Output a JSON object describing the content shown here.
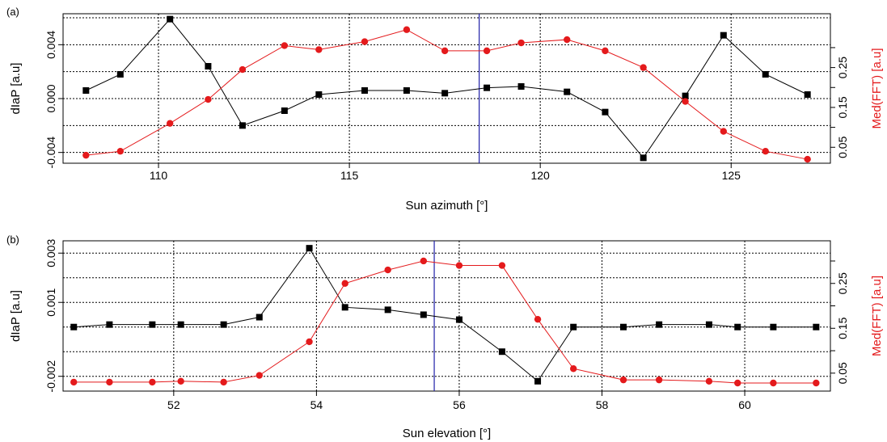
{
  "chart_data": [
    {
      "panel_label": "(a)",
      "type": "line",
      "xlabel": "Sun azimuth [°]",
      "ylabel_left": "dIaP [a.u]",
      "ylabel_right": "Med(FFT) [a.u]",
      "xlim": [
        107.5,
        127.6
      ],
      "ylim_left": [
        -0.0048,
        0.0063
      ],
      "ylim_right": [
        0.01,
        0.385
      ],
      "x_ticks": [
        110,
        115,
        120,
        125
      ],
      "y_ticks_left": [
        -0.004,
        0.0,
        0.004
      ],
      "y_ticks_left_labels": [
        "-0.004",
        "0.000",
        "0.004"
      ],
      "y_grid_left": [
        -0.004,
        -0.002,
        0.0,
        0.002,
        0.004,
        0.006
      ],
      "y_ticks_right": [
        0.05,
        0.15,
        0.25
      ],
      "y_ticks_right_labels": [
        "0.05",
        "0.15",
        "0.25"
      ],
      "y_ticks_right_minor": [
        0.1,
        0.2,
        0.3
      ],
      "vline": 118.4,
      "grid": true,
      "series": [
        {
          "axis": "left",
          "marker": "square",
          "color": "#000000",
          "x": [
            108.1,
            109.0,
            110.3,
            111.3,
            112.2,
            113.3,
            114.2,
            115.4,
            116.5,
            117.5,
            118.6,
            119.5,
            120.7,
            121.7,
            122.7,
            123.8,
            124.8,
            125.9,
            127.0
          ],
          "values": [
            0.0006,
            0.0018,
            0.0059,
            0.0024,
            -0.002,
            -0.0009,
            0.0003,
            0.0006,
            0.0006,
            0.0004,
            0.0008,
            0.0009,
            0.0005,
            -0.001,
            -0.0044,
            0.0002,
            0.0047,
            0.0018,
            0.0003
          ]
        },
        {
          "axis": "right",
          "marker": "circle",
          "color": "#e41a1c",
          "x": [
            108.1,
            109.0,
            110.3,
            111.3,
            112.2,
            113.3,
            114.2,
            115.4,
            116.5,
            117.5,
            118.6,
            119.5,
            120.7,
            121.7,
            122.7,
            123.8,
            124.8,
            125.9,
            127.0
          ],
          "values": [
            0.03,
            0.04,
            0.11,
            0.17,
            0.245,
            0.305,
            0.295,
            0.315,
            0.345,
            0.292,
            0.292,
            0.312,
            0.32,
            0.292,
            0.25,
            0.165,
            0.09,
            0.04,
            0.02
          ]
        }
      ]
    },
    {
      "panel_label": "(b)",
      "type": "line",
      "xlabel": "Sun elevation [°]",
      "ylabel_left": "dIaP [a.u]",
      "ylabel_right": "Med(FFT) [a.u]",
      "xlim": [
        50.45,
        61.2
      ],
      "ylim_left": [
        -0.0026,
        0.0035
      ],
      "ylim_right": [
        0.01,
        0.345
      ],
      "x_ticks": [
        52,
        54,
        56,
        58,
        60
      ],
      "y_ticks_left": [
        -0.002,
        0.001,
        0.003
      ],
      "y_ticks_left_labels": [
        "-0.002",
        "0.001",
        "0.003"
      ],
      "y_grid_left": [
        -0.002,
        -0.001,
        0.0,
        0.001,
        0.002,
        0.003
      ],
      "y_ticks_right": [
        0.05,
        0.15,
        0.25
      ],
      "y_ticks_right_labels": [
        "0.05",
        "0.15",
        "0.25"
      ],
      "y_ticks_right_minor": [
        0.1,
        0.2,
        0.3
      ],
      "vline": 55.65,
      "grid": true,
      "series": [
        {
          "axis": "left",
          "marker": "square",
          "color": "#000000",
          "x": [
            50.6,
            51.1,
            51.7,
            52.1,
            52.7,
            53.2,
            53.9,
            54.4,
            55.0,
            55.5,
            56.0,
            56.6,
            57.1,
            57.6,
            58.3,
            58.8,
            59.5,
            59.9,
            60.4,
            61.0
          ],
          "values": [
            0.0,
            0.0001,
            0.0001,
            0.0001,
            0.0001,
            0.0004,
            0.0032,
            0.0008,
            0.0007,
            0.0005,
            0.0003,
            -0.001,
            -0.0022,
            0.0,
            0.0,
            0.0001,
            0.0001,
            0.0,
            0.0,
            0.0
          ]
        },
        {
          "axis": "right",
          "marker": "circle",
          "color": "#e41a1c",
          "x": [
            50.6,
            51.1,
            51.7,
            52.1,
            52.7,
            53.2,
            53.9,
            54.4,
            55.0,
            55.5,
            56.0,
            56.6,
            57.1,
            57.6,
            58.3,
            58.8,
            59.5,
            59.9,
            60.4,
            61.0
          ],
          "values": [
            0.03,
            0.03,
            0.03,
            0.032,
            0.03,
            0.045,
            0.12,
            0.25,
            0.28,
            0.3,
            0.29,
            0.29,
            0.17,
            0.06,
            0.035,
            0.035,
            0.032,
            0.028,
            0.028,
            0.028
          ]
        }
      ]
    }
  ],
  "style": {
    "left_axis_color": "#000000",
    "right_axis_color": "#e41a1c",
    "vline_color": "#1f1fa8"
  }
}
